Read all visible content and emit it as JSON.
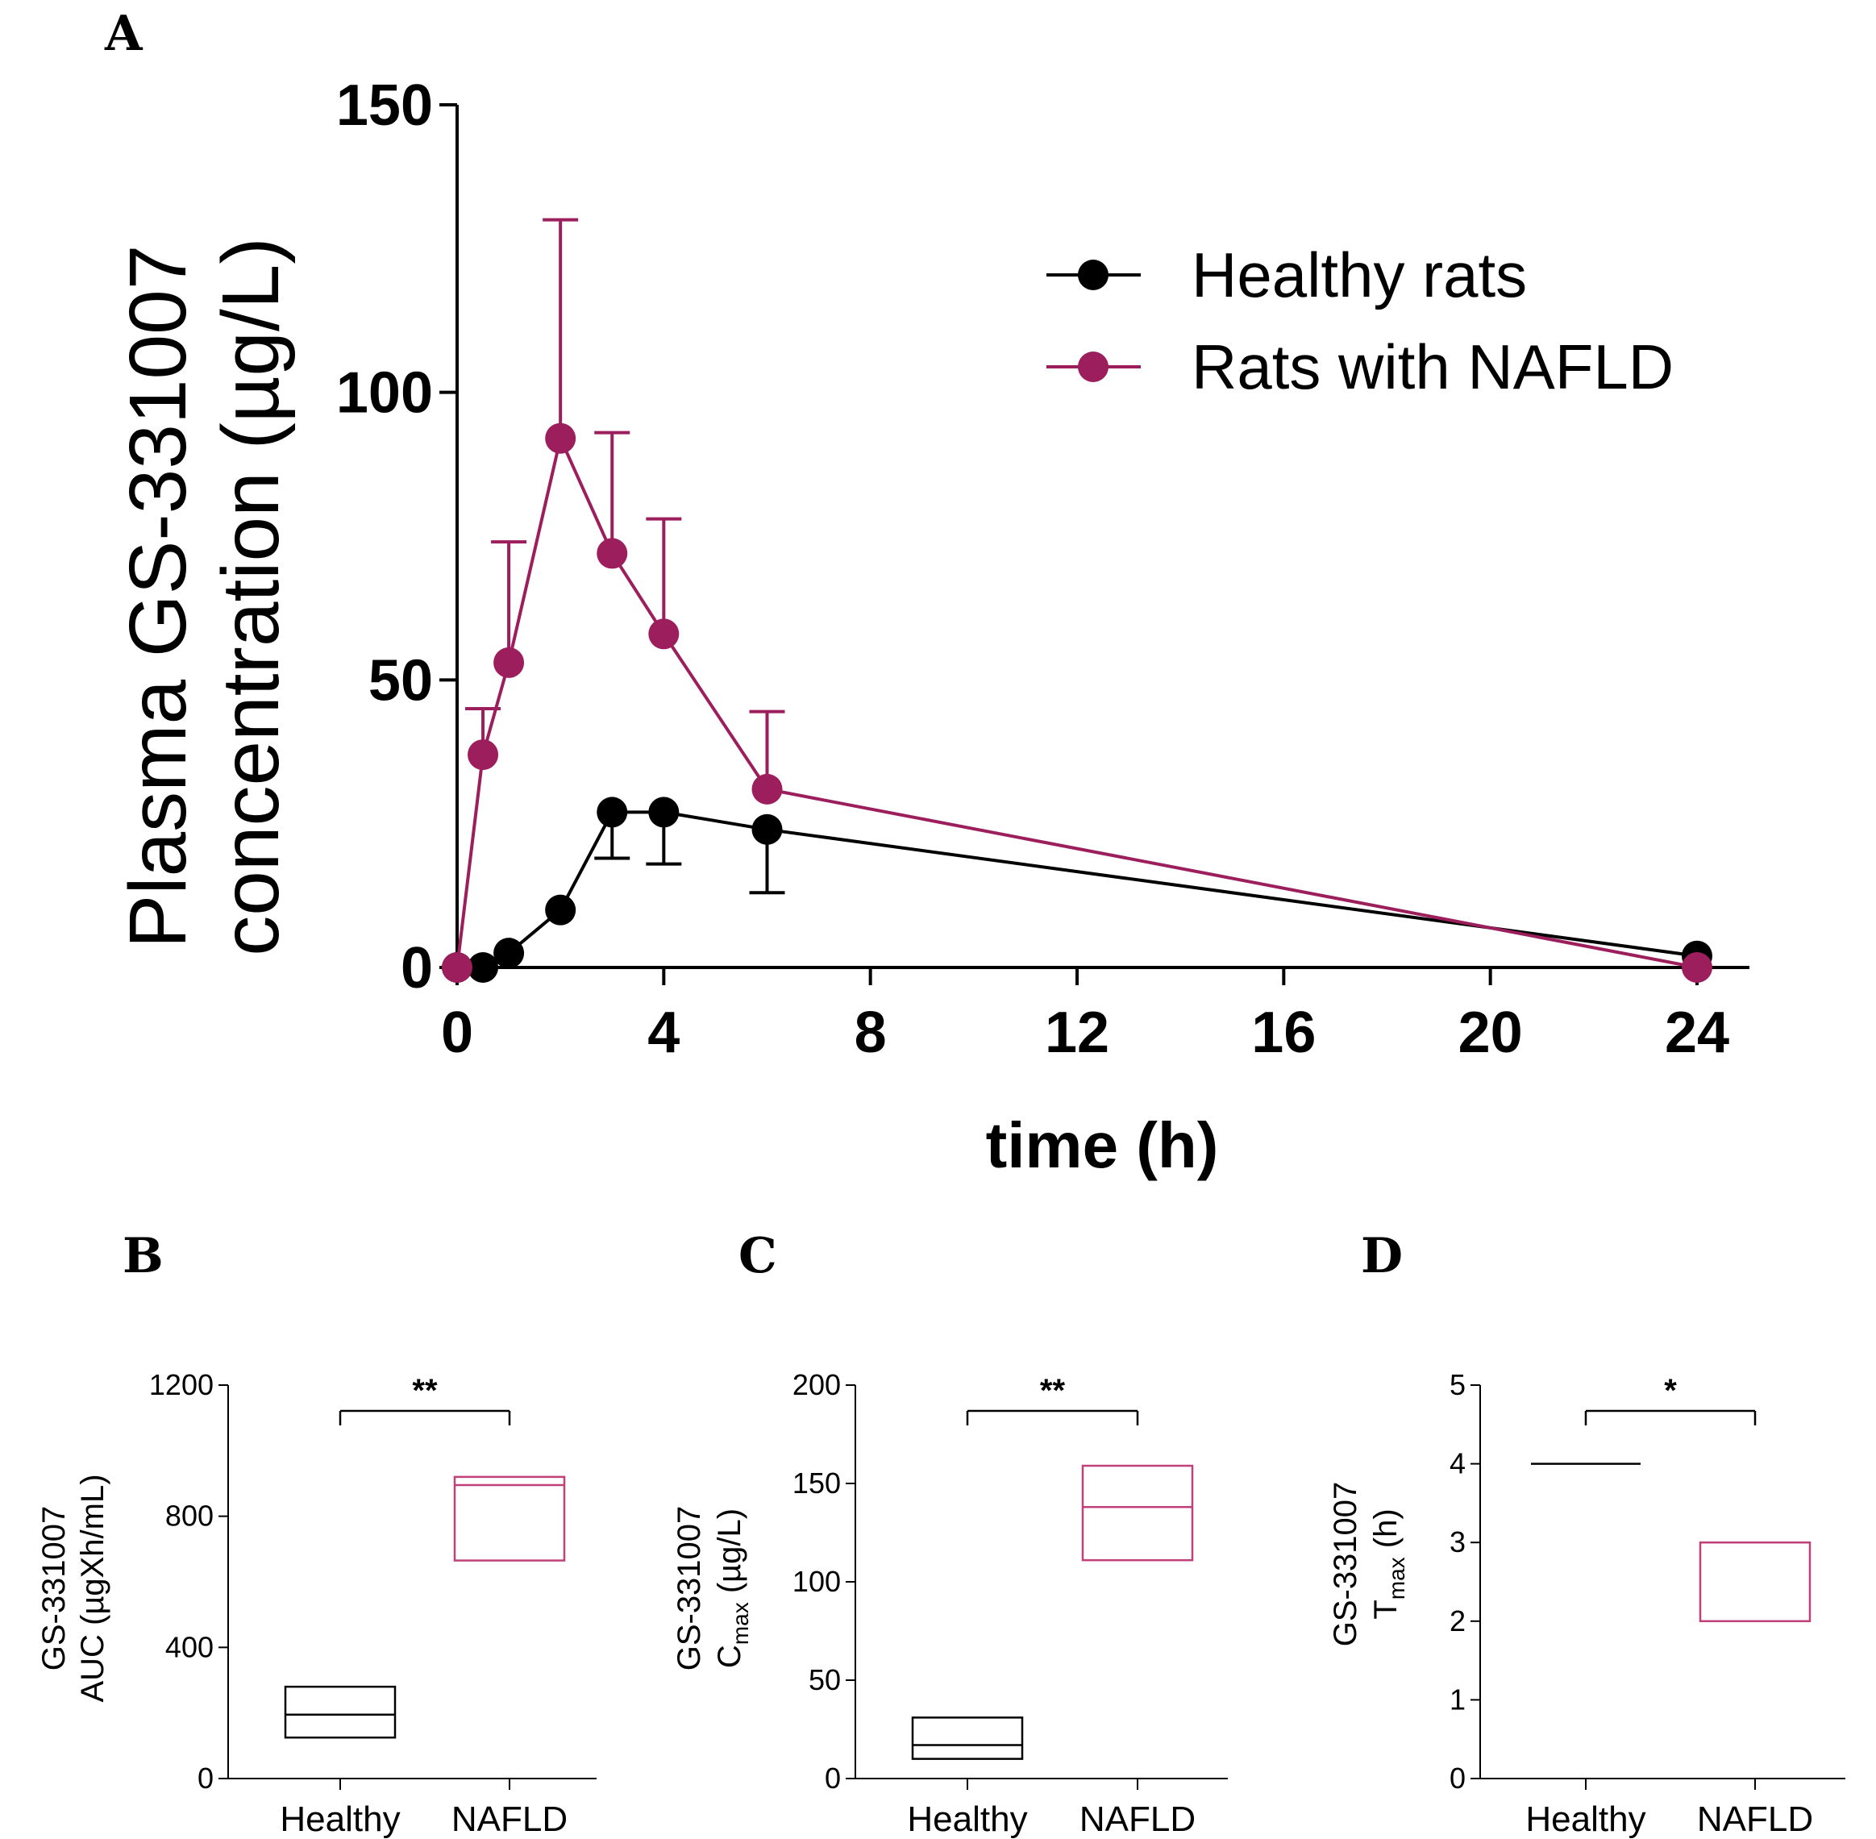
{
  "panels": {
    "a": "A",
    "b": "B",
    "c": "C",
    "d": "D"
  },
  "chart_data": [
    {
      "type": "line",
      "panel": "A",
      "title": "",
      "xlabel": "time (h)",
      "ylabel_line1": "Plasma GS-331007",
      "ylabel_line2": "concentration (µg/L)",
      "xlim": [
        0,
        24
      ],
      "ylim": [
        0,
        150
      ],
      "xticks": [
        "0",
        "4",
        "8",
        "12",
        "16",
        "20",
        "24"
      ],
      "yticks": [
        "0",
        "50",
        "100",
        "150"
      ],
      "legend_position": "top-right",
      "series": [
        {
          "name": "Healthy rats",
          "color": "#000000",
          "x": [
            0,
            0.5,
            1,
            2,
            3,
            4,
            6,
            24
          ],
          "y": [
            0,
            0,
            2.5,
            10,
            27,
            27,
            24,
            2
          ],
          "err": [
            0,
            0,
            0,
            0,
            8,
            9,
            11,
            0
          ],
          "err_dir": "down"
        },
        {
          "name": "Rats with NAFLD",
          "color": "#9c1e5c",
          "x": [
            0,
            0.5,
            1,
            2,
            3,
            4,
            6,
            24
          ],
          "y": [
            0,
            37,
            53,
            92,
            72,
            58,
            31,
            0
          ],
          "err": [
            0,
            8,
            21,
            38,
            21,
            20,
            13.5,
            0
          ],
          "err_dir": "up"
        }
      ]
    },
    {
      "type": "box",
      "panel": "B",
      "ylabel_line1": "GS-331007",
      "ylabel_line2": "AUC (µgXh/mL)",
      "ylim": [
        0,
        1200
      ],
      "yticks": [
        "0",
        "400",
        "800",
        "1200"
      ],
      "categories": [
        "Healthy",
        "NAFLD"
      ],
      "boxes": [
        {
          "name": "Healthy",
          "color": "#000000",
          "low": 125,
          "median": 195,
          "high": 280
        },
        {
          "name": "NAFLD",
          "color": "#c0407a",
          "low": 665,
          "median": 895,
          "high": 920
        }
      ],
      "significance": "**"
    },
    {
      "type": "box",
      "panel": "C",
      "ylabel_line1": "GS-331007",
      "ylabel_main": "C",
      "ylabel_sub": "max",
      "ylabel_unit": " (µg/L)",
      "ylim": [
        0,
        200
      ],
      "yticks": [
        "0",
        "50",
        "100",
        "150",
        "200"
      ],
      "categories": [
        "Healthy",
        "NAFLD"
      ],
      "boxes": [
        {
          "name": "Healthy",
          "color": "#000000",
          "low": 10,
          "median": 17,
          "high": 31
        },
        {
          "name": "NAFLD",
          "color": "#c0407a",
          "low": 111,
          "median": 138,
          "high": 159
        }
      ],
      "significance": "**"
    },
    {
      "type": "box",
      "panel": "D",
      "ylabel_line1": "GS-331007",
      "ylabel_main": "T",
      "ylabel_sub": "max",
      "ylabel_unit": " (h)",
      "ylim": [
        0,
        5
      ],
      "yticks": [
        "0",
        "1",
        "2",
        "3",
        "4",
        "5"
      ],
      "categories": [
        "Healthy",
        "NAFLD"
      ],
      "boxes": [
        {
          "name": "Healthy",
          "color": "#000000",
          "low": 4,
          "median": 4,
          "high": 4
        },
        {
          "name": "NAFLD",
          "color": "#c0407a",
          "low": 2,
          "median": 3,
          "high": 3
        }
      ],
      "significance": "*"
    }
  ]
}
